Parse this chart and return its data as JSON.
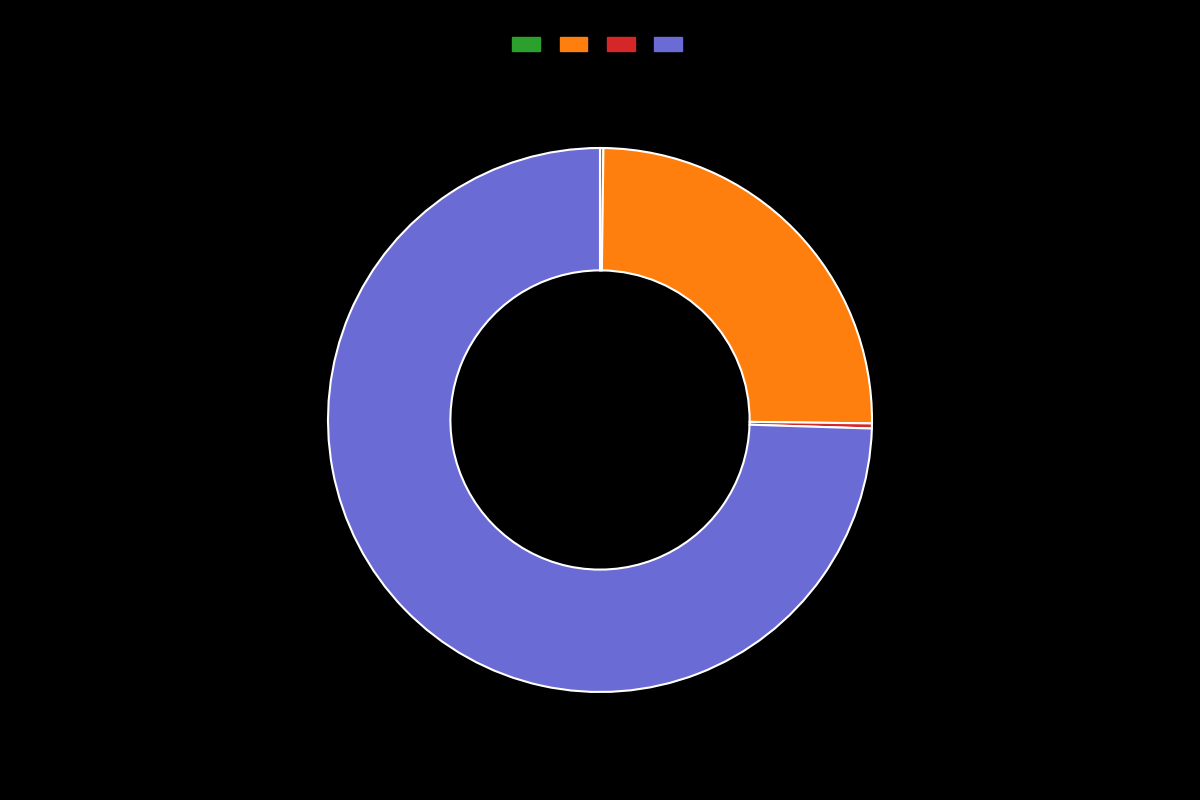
{
  "values": [
    0.2,
    25.0,
    0.3,
    74.5
  ],
  "colors": [
    "#2ca02c",
    "#ff7f0e",
    "#d62728",
    "#6b6bd6"
  ],
  "legend_labels": [
    "",
    "",
    "",
    ""
  ],
  "background_color": "#000000",
  "wedge_edge_color": "#ffffff",
  "wedge_linewidth": 1.5,
  "donut_width": 0.45,
  "startangle": 90,
  "legend_colors": [
    "#2ca02c",
    "#ff7f0e",
    "#d62728",
    "#6b6bd6"
  ],
  "figsize": [
    12.0,
    8.0
  ],
  "dpi": 100
}
